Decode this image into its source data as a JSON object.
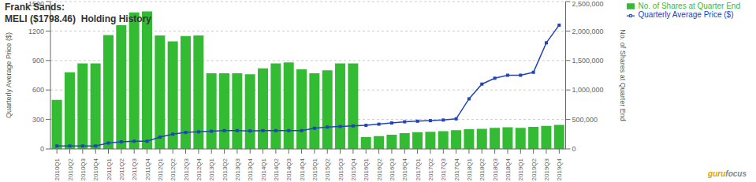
{
  "chart_data": {
    "type": "bar",
    "title": "Frank Sands:",
    "subtitle": "MELI ($1798.46)  Holding History",
    "y_label": "Quarterly Average Price ($)",
    "y2_label": "No. of Shares at Quarter End",
    "categories": [
      "2010Q1",
      "2010Q2",
      "2010Q3",
      "2010Q4",
      "2011Q1",
      "2011Q2",
      "2011Q3",
      "2011Q4",
      "2012Q1",
      "2012Q2",
      "2012Q3",
      "2012Q4",
      "2013Q1",
      "2013Q2",
      "2013Q3",
      "2013Q4",
      "2014Q1",
      "2014Q2",
      "2014Q3",
      "2014Q4",
      "2015Q1",
      "2015Q2",
      "2015Q3",
      "2015Q4",
      "2016Q1",
      "2016Q2",
      "2016Q3",
      "2016Q4",
      "2017Q1",
      "2017Q2",
      "2017Q3",
      "2017Q4",
      "2018Q1",
      "2018Q2",
      "2018Q3",
      "2018Q4",
      "2019Q1",
      "2019Q2",
      "2019Q3",
      "2019Q4"
    ],
    "series": [
      {
        "name": "No. of Shares at Quarter End",
        "type": "bar",
        "color": "#33bb33",
        "values": [
          500,
          780,
          870,
          870,
          1160,
          1260,
          1390,
          1400,
          1155,
          1095,
          1150,
          1155,
          770,
          770,
          770,
          760,
          820,
          870,
          880,
          810,
          770,
          800,
          870,
          870,
          120,
          130,
          145,
          160,
          170,
          175,
          180,
          190,
          200,
          205,
          215,
          220,
          215,
          225,
          235,
          245
        ]
      },
      {
        "name": "Quarterly Average Price ($)",
        "type": "line",
        "color": "#2244bb",
        "marker": "square",
        "axis": "y2",
        "values": [
          50000,
          50000,
          50000,
          50000,
          100000,
          120000,
          130000,
          130000,
          200000,
          250000,
          280000,
          290000,
          300000,
          310000,
          310000,
          305000,
          310000,
          310000,
          310000,
          310000,
          350000,
          370000,
          380000,
          390000,
          400000,
          420000,
          440000,
          460000,
          470000,
          480000,
          490000,
          510000,
          850000,
          1100000,
          1200000,
          1250000,
          1250000,
          1300000,
          1800000,
          2100000
        ]
      }
    ],
    "ylim": [
      0,
      1500
    ],
    "yticks": [
      0,
      300,
      600,
      900,
      1200,
      1500
    ],
    "y2lim": [
      0,
      2500000
    ],
    "y2ticks": [
      0,
      {
        "value": 500000,
        "label": "500,000"
      },
      {
        "value": 1000000,
        "label": "1,000,000"
      },
      {
        "value": 1500000,
        "label": "1,500,000"
      },
      {
        "value": 2000000,
        "label": "2,000,000"
      },
      {
        "value": 2500000,
        "label": "2,500,000"
      }
    ],
    "grid": true,
    "legend": "upper right",
    "annotations": [
      "guru",
      "focus"
    ]
  }
}
